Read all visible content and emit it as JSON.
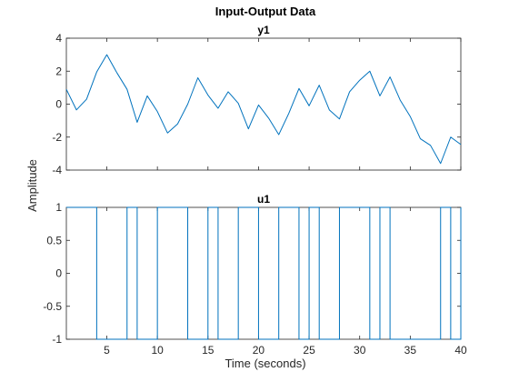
{
  "figure": {
    "title": "Input-Output Data",
    "ylabel": "Amplitude",
    "xlabel": "Time (seconds)"
  },
  "colors": {
    "line": "#0072bd",
    "axis": "#262626"
  },
  "chart_data": [
    {
      "type": "line",
      "title": "y1",
      "xlim": [
        1,
        40
      ],
      "ylim": [
        -4,
        4
      ],
      "xticks": [
        5,
        10,
        15,
        20,
        25,
        30,
        35,
        40
      ],
      "yticks": [
        -4,
        -2,
        0,
        2,
        4
      ],
      "ytick_labels": [
        "-4",
        "-2",
        "0",
        "2",
        "4"
      ],
      "show_x_tick_labels": false,
      "grid": false,
      "series": [
        {
          "x": [
            1,
            2,
            3,
            4,
            5,
            6,
            7,
            8,
            9,
            10,
            11,
            12,
            13,
            14,
            15,
            16,
            17,
            18,
            19,
            20,
            21,
            22,
            23,
            24,
            25,
            26,
            27,
            28,
            29,
            30,
            31,
            32,
            33,
            34,
            35,
            36,
            37,
            38,
            39,
            40
          ],
          "y": [
            0.9,
            -0.35,
            0.3,
            1.95,
            3.0,
            1.9,
            0.9,
            -1.1,
            0.5,
            -0.45,
            -1.75,
            -1.2,
            0.0,
            1.6,
            0.55,
            -0.25,
            0.75,
            0.05,
            -1.5,
            -0.05,
            -0.85,
            -1.85,
            -0.55,
            0.95,
            -0.1,
            1.15,
            -0.35,
            -0.9,
            0.75,
            1.45,
            2.0,
            0.5,
            1.65,
            0.25,
            -0.75,
            -2.1,
            -2.5,
            -3.6,
            -2.0,
            -2.45
          ]
        }
      ]
    },
    {
      "type": "line",
      "title": "u1",
      "step": true,
      "xlim": [
        1,
        40
      ],
      "ylim": [
        -1,
        1
      ],
      "xticks": [
        5,
        10,
        15,
        20,
        25,
        30,
        35,
        40
      ],
      "yticks": [
        -1,
        -0.5,
        0,
        0.5,
        1
      ],
      "ytick_labels": [
        "-1",
        "-0.5",
        "0",
        "0.5",
        "1"
      ],
      "xtick_labels": [
        "5",
        "10",
        "15",
        "20",
        "25",
        "30",
        "35",
        "40"
      ],
      "show_x_tick_labels": true,
      "grid": false,
      "series": [
        {
          "x": [
            1,
            2,
            3,
            4,
            5,
            6,
            7,
            8,
            9,
            10,
            11,
            12,
            13,
            14,
            15,
            16,
            17,
            18,
            19,
            20,
            21,
            22,
            23,
            24,
            25,
            26,
            27,
            28,
            29,
            30,
            31,
            32,
            33,
            34,
            35,
            36,
            37,
            38,
            39,
            40
          ],
          "y": [
            1,
            1,
            1,
            -1,
            -1,
            -1,
            1,
            -1,
            -1,
            1,
            1,
            1,
            -1,
            -1,
            1,
            -1,
            -1,
            1,
            1,
            -1,
            -1,
            1,
            1,
            -1,
            1,
            -1,
            -1,
            1,
            1,
            1,
            -1,
            1,
            -1,
            -1,
            -1,
            -1,
            -1,
            1,
            -1,
            1
          ]
        }
      ]
    }
  ]
}
